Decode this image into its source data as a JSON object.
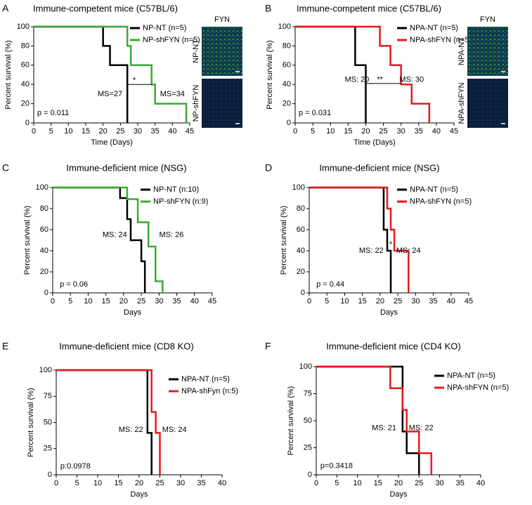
{
  "chart_data": [
    {
      "type": "step",
      "panel": "A",
      "title": "Immune-competent mice (C57BL/6)",
      "xlabel": "Time (Days)",
      "ylabel": "Percent survival (%)",
      "xlim": [
        0,
        45
      ],
      "xticks": [
        0,
        5,
        10,
        15,
        20,
        25,
        30,
        35,
        40,
        45
      ],
      "ylim": [
        0,
        100
      ],
      "yticks": [
        0,
        20,
        40,
        60,
        80,
        100
      ],
      "legend": "upper center",
      "series": [
        {
          "name": "NP-NT (n=5)",
          "color": "#000000",
          "x": [
            0,
            20,
            22,
            27
          ],
          "values": [
            100,
            80,
            60,
            0
          ]
        },
        {
          "name": "NP-shFYN (n=5)",
          "color": "#3aaa35",
          "x": [
            0,
            27,
            28,
            34,
            35,
            44
          ],
          "values": [
            100,
            80,
            60,
            40,
            20,
            0
          ]
        }
      ],
      "annotations": [
        "MS=27",
        "MS=34",
        "*",
        "p = 0.011"
      ],
      "images": {
        "title": "FYN",
        "labels": [
          "NP-NT",
          "NP-shFYN"
        ]
      }
    },
    {
      "type": "step",
      "panel": "B",
      "title": "Immune-competent mice (C57BL/6)",
      "xlabel": "Time (Days)",
      "ylabel": "Percent survival (%)",
      "xlim": [
        0,
        45
      ],
      "xticks": [
        0,
        5,
        10,
        15,
        20,
        25,
        30,
        35,
        40,
        45
      ],
      "ylim": [
        0,
        100
      ],
      "yticks": [
        0,
        20,
        40,
        60,
        80,
        100
      ],
      "legend": "upper center",
      "series": [
        {
          "name": "NPA-NT (n=5)",
          "color": "#000000",
          "x": [
            0,
            17,
            20
          ],
          "values": [
            100,
            60,
            0
          ]
        },
        {
          "name": "NPA-shFYN (n=5)",
          "color": "#e41a1c",
          "x": [
            0,
            24,
            27,
            30,
            33,
            38
          ],
          "values": [
            100,
            80,
            60,
            40,
            20,
            0
          ]
        }
      ],
      "annotations": [
        "MS: 20",
        "MS: 30",
        "**",
        "p = 0.031"
      ],
      "images": {
        "title": "FYN",
        "labels": [
          "NPA-NT",
          "NPA-shFYN"
        ]
      }
    },
    {
      "type": "step",
      "panel": "C",
      "title": "Immune-deficient mice (NSG)",
      "xlabel": "Days",
      "ylabel": "Percent survival (%)",
      "xlim": [
        0,
        45
      ],
      "xticks": [
        0,
        5,
        10,
        15,
        20,
        25,
        30,
        35,
        40,
        45
      ],
      "ylim": [
        0,
        100
      ],
      "yticks": [
        0,
        20,
        40,
        60,
        80,
        100
      ],
      "legend": "upper center",
      "series": [
        {
          "name": "NP-NT (n:10)",
          "color": "#000000",
          "x": [
            0,
            19,
            21,
            22,
            25,
            26
          ],
          "values": [
            100,
            90,
            70,
            50,
            30,
            0
          ]
        },
        {
          "name": "NP-shFYN (n:9)",
          "color": "#3aaa35",
          "x": [
            0,
            21,
            24,
            27,
            29,
            31
          ],
          "values": [
            100,
            89,
            67,
            44,
            11,
            0
          ]
        }
      ],
      "annotations": [
        "MS: 24",
        "MS: 26",
        "p = 0.06"
      ]
    },
    {
      "type": "step",
      "panel": "D",
      "title": "Immune-deficient mice (NSG)",
      "xlabel": "Days",
      "ylabel": "Percent survival (%)",
      "xlim": [
        0,
        45
      ],
      "xticks": [
        0,
        5,
        10,
        15,
        20,
        25,
        30,
        35,
        40,
        45
      ],
      "ylim": [
        0,
        100
      ],
      "yticks": [
        0,
        20,
        40,
        60,
        80,
        100
      ],
      "legend": "upper center",
      "series": [
        {
          "name": "NPA-NT (n=5)",
          "color": "#000000",
          "x": [
            0,
            21,
            22,
            23
          ],
          "values": [
            100,
            60,
            40,
            0
          ]
        },
        {
          "name": "NPA-shFYN (n=5)",
          "color": "#e41a1c",
          "x": [
            0,
            22,
            23,
            24,
            28
          ],
          "values": [
            100,
            80,
            60,
            40,
            0
          ]
        }
      ],
      "annotations": [
        "MS: 22",
        "MS: 24",
        "*",
        "p = 0.44"
      ]
    },
    {
      "type": "step",
      "panel": "E",
      "title": "Immune-deficient mice (CD8 KO)",
      "xlabel": "Days",
      "ylabel": "Percent survival (%)",
      "xlim": [
        0,
        40
      ],
      "xticks": [
        0,
        5,
        10,
        15,
        20,
        25,
        30,
        35,
        40
      ],
      "ylim": [
        0,
        100
      ],
      "yticks": [
        0,
        25,
        50,
        75,
        100
      ],
      "legend": "right",
      "series": [
        {
          "name": "NPA-NT (n=5)",
          "color": "#000000",
          "x": [
            0,
            22,
            23
          ],
          "values": [
            100,
            40,
            0
          ]
        },
        {
          "name": "NPA-shFyn (n:5)",
          "color": "#e41a1c",
          "x": [
            0,
            23,
            24,
            25
          ],
          "values": [
            100,
            60,
            40,
            0
          ]
        }
      ],
      "annotations": [
        "MS: 22",
        "MS: 24",
        "p:0.0978"
      ]
    },
    {
      "type": "step",
      "panel": "F",
      "title": "Immune-deficient mice (CD4 KO)",
      "xlabel": "Days",
      "ylabel": "Percent survival (%)",
      "xlim": [
        0,
        40
      ],
      "xticks": [
        0,
        5,
        10,
        15,
        20,
        25,
        30,
        35,
        40
      ],
      "ylim": [
        0,
        100
      ],
      "yticks": [
        0,
        25,
        50,
        75,
        100
      ],
      "legend": "right",
      "series": [
        {
          "name": "NPA-NT (n=5)",
          "color": "#000000",
          "x": [
            0,
            21,
            22,
            25
          ],
          "values": [
            100,
            40,
            20,
            0
          ]
        },
        {
          "name": "NPA-shFYN (n=5)",
          "color": "#e41a1c",
          "x": [
            0,
            18,
            21,
            22,
            25,
            28
          ],
          "values": [
            100,
            80,
            60,
            40,
            20,
            0
          ]
        }
      ],
      "annotations": [
        "MS: 21",
        "MS: 22",
        "p=0.3418"
      ]
    }
  ]
}
